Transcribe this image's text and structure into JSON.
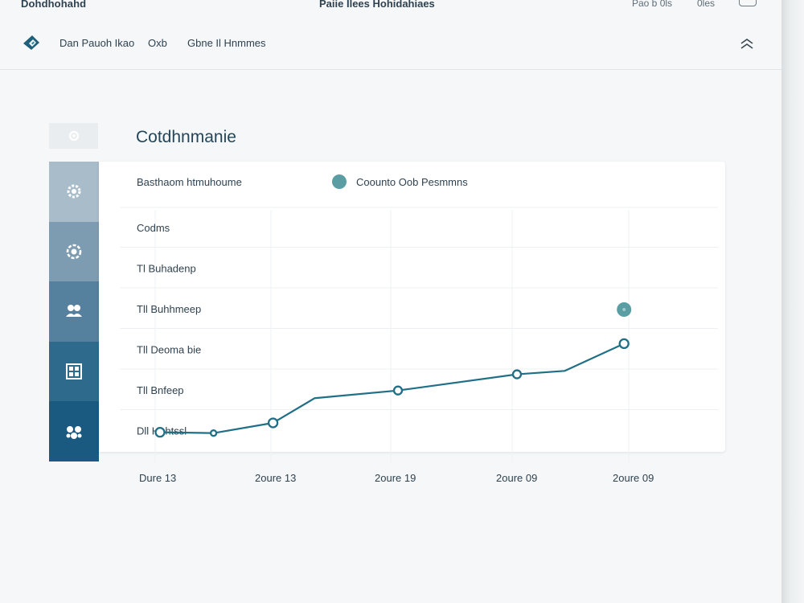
{
  "titlebar": {
    "app_title": "Dohdhohahd",
    "window_title": "Paiie Ilees Hohidahiaes",
    "link_1": "Pao b 0ls",
    "link_2": "0les"
  },
  "nav": {
    "items": [
      "Dan Pauoh Ikao",
      "Oxb",
      "Gbne Il Hnmmes"
    ]
  },
  "section": {
    "title": "Cotdhnmanie"
  },
  "colors": {
    "accent": "#2a7a8c",
    "line": "#1f6f86",
    "legend_dot": "#5a9ea3",
    "sidebar_shades": [
      "#a9bcca",
      "#7d9bb1",
      "#55809e",
      "#2e6a8c",
      "#1a5a80"
    ]
  },
  "sidebar_icons": [
    "gear-icon",
    "settings-icon",
    "people-icon",
    "grid-icon",
    "network-icon"
  ],
  "chart_data": {
    "type": "line",
    "title": "Basthaom htmuhoume",
    "legend": "Coounto Oob Pesmmns",
    "legend_placement": "top-right",
    "grid": true,
    "row_labels": [
      "Codms",
      "Tl Buhadenp",
      "Tll Buhhmeep",
      "Tll Deoma bie",
      "Tll Bnfeep",
      "Dll Huhtssl"
    ],
    "x_labels": [
      "Dure 13",
      "2oure 13",
      "2oure 19",
      "2oure 09",
      "2oure 09"
    ],
    "series": [
      {
        "values": [
          [
            0.0,
            0.6
          ],
          [
            0.45,
            0.5
          ],
          [
            0.95,
            1.7
          ],
          [
            1.3,
            4.6
          ],
          [
            2.0,
            5.5
          ],
          [
            3.0,
            7.4
          ],
          [
            3.4,
            7.8
          ],
          [
            3.9,
            11.0
          ]
        ],
        "marker_indices": [
          0,
          1,
          2,
          4,
          5,
          7
        ]
      }
    ],
    "annotation_point": [
      3.9,
      15.0
    ]
  }
}
